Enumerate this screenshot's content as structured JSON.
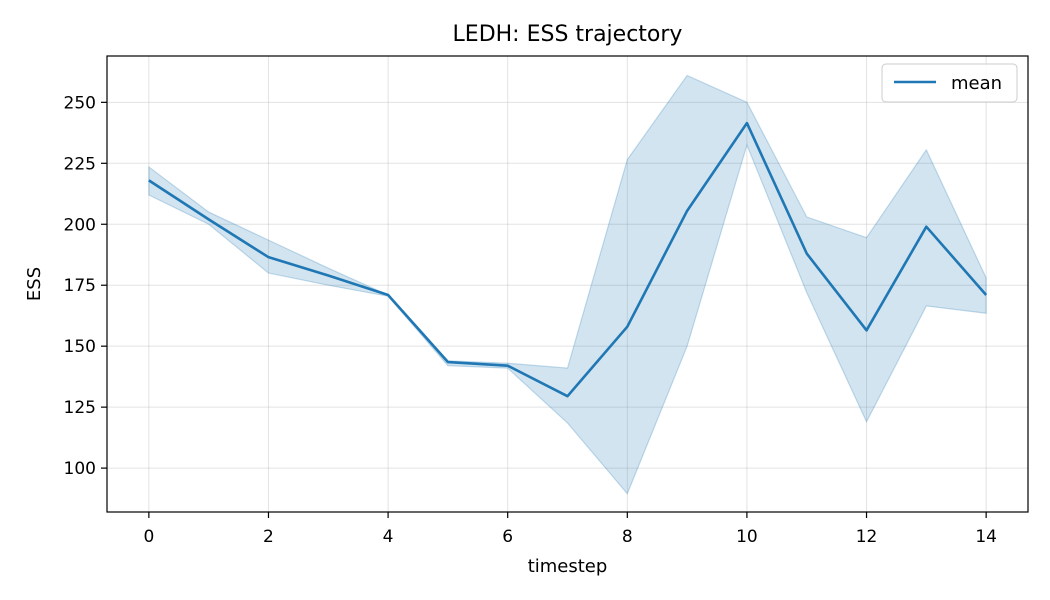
{
  "chart_data": {
    "type": "line",
    "title": "LEDH: ESS trajectory",
    "xlabel": "timestep",
    "ylabel": "ESS",
    "xlim": [
      -0.7,
      14.7
    ],
    "ylim": [
      82,
      269
    ],
    "xticks": [
      0,
      2,
      4,
      6,
      8,
      10,
      12,
      14
    ],
    "yticks": [
      100,
      125,
      150,
      175,
      200,
      225,
      250
    ],
    "grid": true,
    "legend": {
      "position": "top-right",
      "entries": [
        "mean"
      ]
    },
    "series": [
      {
        "name": "mean",
        "color": "#1f77b4",
        "x": [
          0,
          1,
          2,
          3,
          4,
          5,
          6,
          7,
          8,
          9,
          10,
          11,
          12,
          13,
          14
        ],
        "values": [
          218,
          202,
          186.5,
          179,
          171,
          143.5,
          142,
          129.5,
          158,
          205.5,
          241.5,
          188,
          156.5,
          199,
          171
        ]
      }
    ],
    "band": {
      "color": "#1f77b4",
      "opacity": 0.2,
      "upper": [
        223.5,
        205,
        193.5,
        182,
        171,
        144,
        143,
        141,
        226.5,
        261,
        250,
        203,
        194.5,
        230.5,
        178
      ],
      "lower": [
        212,
        200,
        180,
        175,
        170.5,
        142,
        141,
        118.5,
        89.5,
        150,
        232.5,
        172,
        119,
        166.5,
        163.5
      ]
    }
  }
}
